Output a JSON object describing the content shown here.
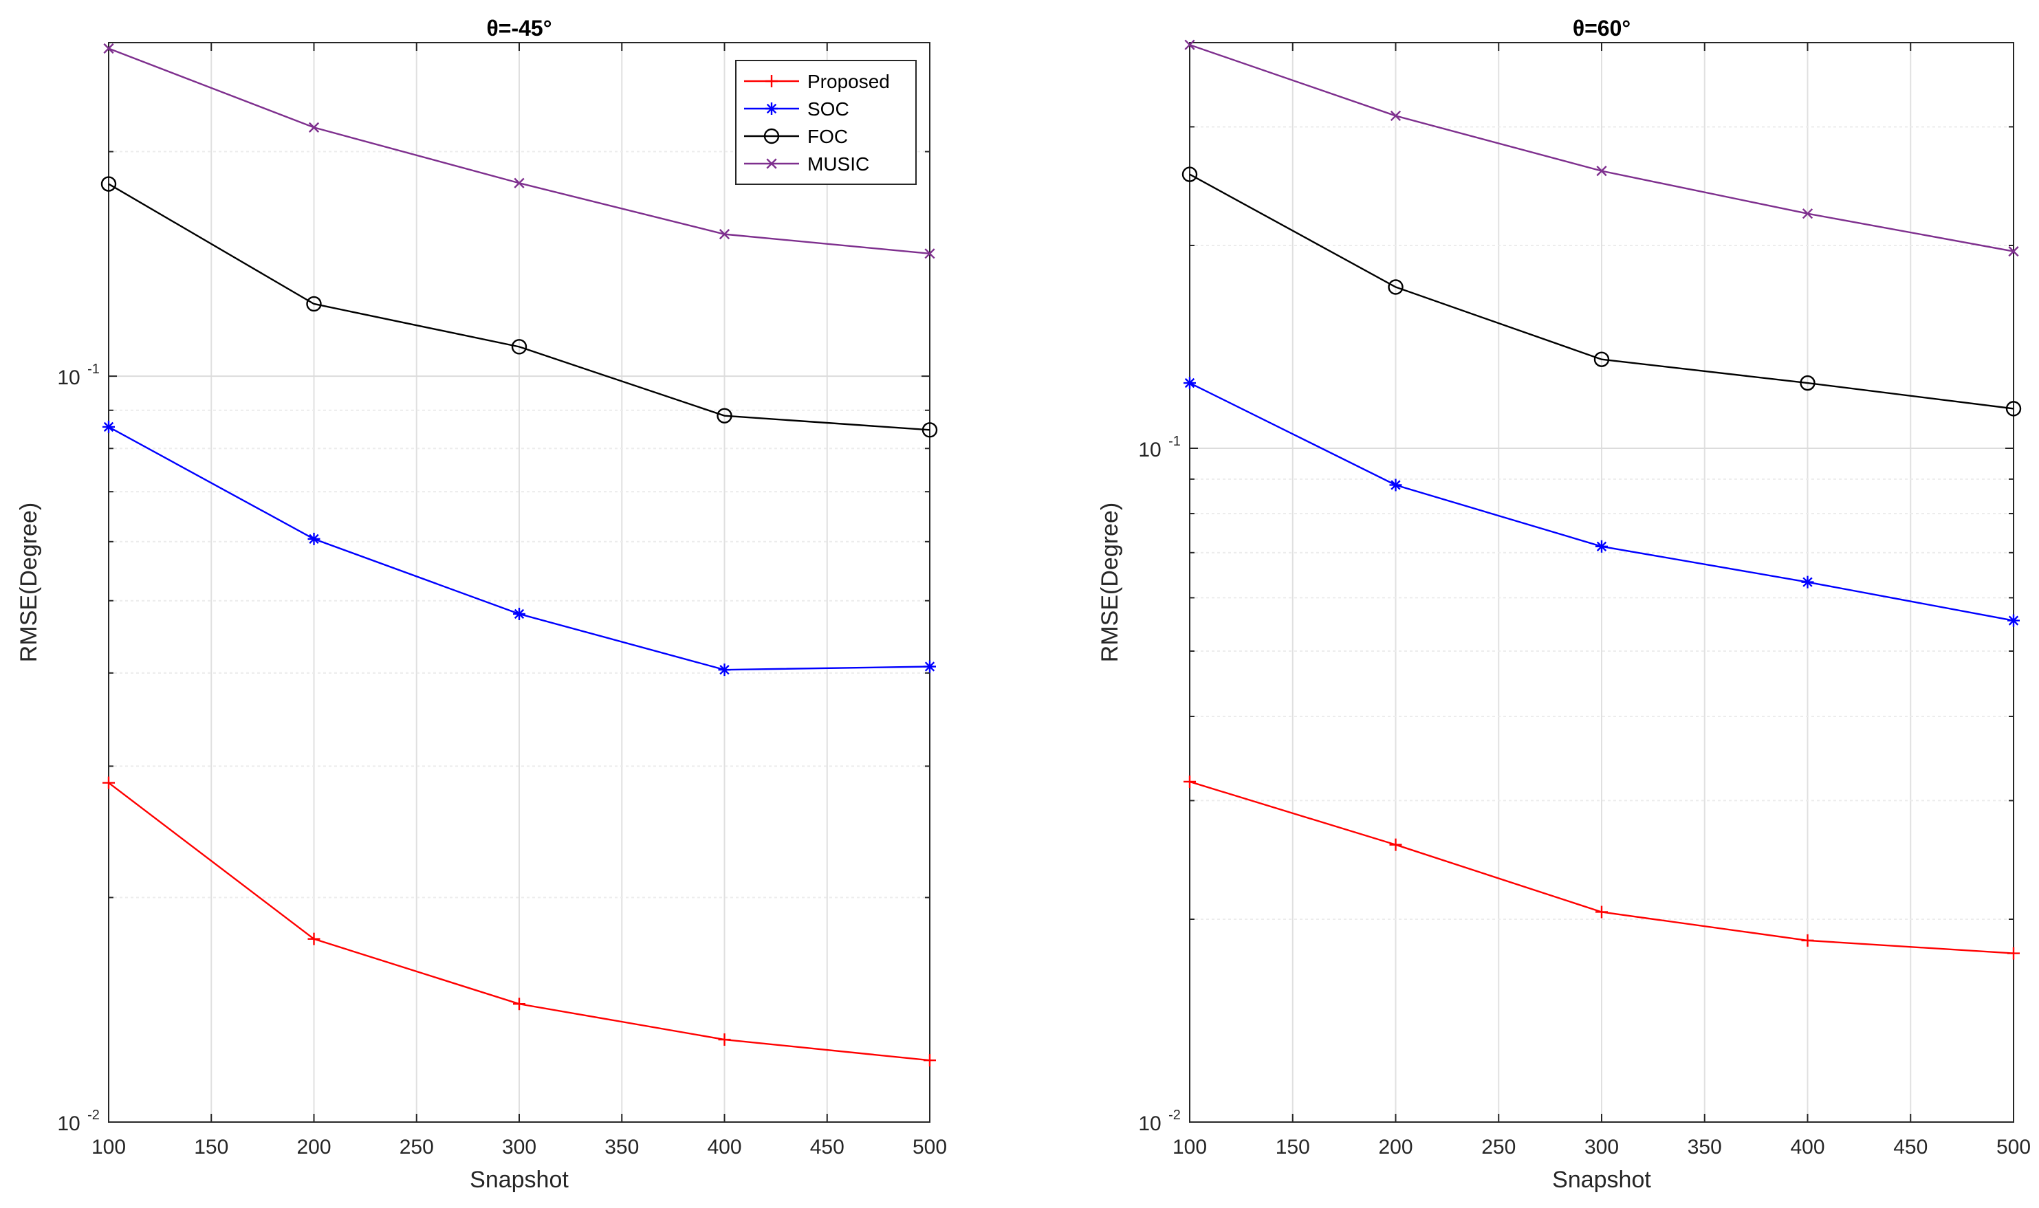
{
  "chart_data": [
    {
      "type": "line",
      "title": "θ=-45°",
      "xlabel": "Snapshot",
      "ylabel": "RMSE(Degree)",
      "yscale": "log",
      "xlim": [
        100,
        500
      ],
      "ylim": [
        0.01,
        0.28
      ],
      "grid": true,
      "x": [
        100,
        200,
        300,
        400,
        500
      ],
      "xticks": [
        "100",
        "150",
        "200",
        "250",
        "300",
        "350",
        "400",
        "450",
        "500"
      ],
      "yticks": [
        {
          "base": "10",
          "exp": "-2"
        },
        {
          "base": "10",
          "exp": "-1"
        }
      ],
      "legend": "top-right",
      "series": [
        {
          "name": "Proposed",
          "marker": "+",
          "color": "#ff0000",
          "values": [
            0.0285,
            0.0176,
            0.0144,
            0.0129,
            0.0121
          ]
        },
        {
          "name": "SOC",
          "marker": "*",
          "color": "#0000ff",
          "values": [
            0.0855,
            0.0605,
            0.048,
            0.0404,
            0.0408
          ]
        },
        {
          "name": "FOC",
          "marker": "o",
          "color": "#000000",
          "values": [
            0.181,
            0.125,
            0.1095,
            0.0885,
            0.0847
          ]
        },
        {
          "name": "MUSIC",
          "marker": "x",
          "color": "#7e2f8e",
          "values": [
            0.275,
            0.2155,
            0.1815,
            0.155,
            0.146
          ]
        }
      ]
    },
    {
      "type": "line",
      "title": "θ=60°",
      "xlabel": "Snapshot",
      "ylabel": "RMSE(Degree)",
      "yscale": "log",
      "xlim": [
        100,
        500
      ],
      "ylim": [
        0.01,
        0.4
      ],
      "grid": true,
      "x": [
        100,
        200,
        300,
        400,
        500
      ],
      "xticks": [
        "100",
        "150",
        "200",
        "250",
        "300",
        "350",
        "400",
        "450",
        "500"
      ],
      "yticks": [
        {
          "base": "10",
          "exp": "-2"
        },
        {
          "base": "10",
          "exp": "-1"
        }
      ],
      "legend": "none",
      "series": [
        {
          "name": "Proposed",
          "marker": "+",
          "color": "#ff0000",
          "values": [
            0.032,
            0.0258,
            0.0205,
            0.0186,
            0.0178
          ]
        },
        {
          "name": "SOC",
          "marker": "*",
          "color": "#0000ff",
          "values": [
            0.125,
            0.0882,
            0.0715,
            0.0633,
            0.0555
          ]
        },
        {
          "name": "FOC",
          "marker": "o",
          "color": "#000000",
          "values": [
            0.255,
            0.1735,
            0.1355,
            0.125,
            0.1145
          ]
        },
        {
          "name": "MUSIC",
          "marker": "x",
          "color": "#7e2f8e",
          "values": [
            0.397,
            0.3115,
            0.258,
            0.223,
            0.196
          ]
        }
      ]
    }
  ]
}
